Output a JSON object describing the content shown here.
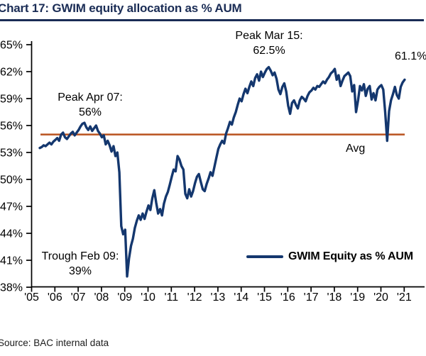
{
  "title": "Chart 17: GWIM equity allocation as % AUM",
  "source": "Source: BAC internal data",
  "colors": {
    "line": "#14376e",
    "avg_line": "#bc5a28",
    "title": "#1a2c55",
    "axis": "#000000"
  },
  "legend": {
    "label": "GWIM Equity as % AUM"
  },
  "annotations": {
    "peak_apr07": {
      "line1": "Peak Apr 07:",
      "line2": "56%"
    },
    "peak_mar15": {
      "line1": "Peak Mar 15:",
      "line2": "62.5%"
    },
    "trough_feb09": {
      "line1": "Trough Feb 09:",
      "line2": "39%"
    },
    "avg_label": "Avg",
    "end_value_label": "61.1%"
  },
  "chart_data": {
    "type": "line",
    "title": "GWIM equity allocation as % AUM",
    "xlabel": "",
    "ylabel": "GWIM Equity as % AUM",
    "ylim": [
      38,
      65
    ],
    "grid": false,
    "legend_position": "lower right",
    "x_start": "2005-05",
    "x_end": "2021-01",
    "x_interval": "monthly",
    "x_tick_labels": [
      "'05",
      "'06",
      "'07",
      "'08",
      "'09",
      "'10",
      "'11",
      "'12",
      "'13",
      "'14",
      "'15",
      "'16",
      "'17",
      "'18",
      "'19",
      "'20",
      "'21"
    ],
    "y_ticks": [
      38,
      41,
      44,
      47,
      50,
      53,
      56,
      59,
      62,
      65
    ],
    "y_tick_labels": [
      "38%",
      "41%",
      "44%",
      "47%",
      "50%",
      "53%",
      "56%",
      "59%",
      "62%",
      "65%"
    ],
    "average_line_value": 55.0,
    "key_points": {
      "peak_apr_2007": 56,
      "trough_feb_2009": 39,
      "peak_mar_2015": 62.5,
      "latest_value": 61.1
    },
    "series": [
      {
        "name": "GWIM Equity as % AUM",
        "values": [
          53.5,
          53.6,
          53.8,
          53.7,
          53.9,
          54.1,
          53.9,
          54.2,
          54.4,
          54.6,
          54.3,
          55.0,
          55.2,
          54.7,
          54.5,
          54.8,
          55.1,
          55.3,
          54.9,
          55.2,
          55.5,
          55.9,
          56.2,
          56.3,
          55.8,
          55.5,
          55.9,
          55.4,
          55.7,
          56.0,
          55.4,
          55.1,
          54.7,
          54.9,
          53.9,
          54.3,
          53.8,
          53.1,
          53.7,
          52.6,
          53.0,
          50.8,
          44.8,
          43.9,
          44.4,
          39.2,
          41.2,
          42.6,
          43.4,
          44.6,
          45.4,
          46.0,
          45.5,
          46.2,
          45.6,
          46.4,
          47.1,
          46.6,
          47.9,
          48.8,
          47.4,
          46.2,
          46.7,
          46.0,
          47.3,
          48.1,
          48.6,
          49.4,
          50.3,
          51.1,
          50.9,
          52.6,
          52.2,
          51.5,
          51.1,
          48.4,
          47.9,
          48.9,
          48.1,
          48.7,
          49.6,
          50.3,
          50.6,
          49.7,
          48.9,
          48.7,
          49.5,
          50.1,
          50.8,
          50.4,
          51.4,
          52.4,
          53.4,
          53.9,
          54.3,
          54.0,
          55.1,
          55.7,
          56.4,
          56.1,
          56.9,
          57.5,
          58.3,
          59.0,
          58.7,
          59.5,
          60.1,
          59.6,
          60.3,
          60.9,
          60.4,
          61.3,
          61.7,
          61.0,
          62.0,
          61.4,
          61.9,
          62.3,
          62.5,
          62.1,
          61.6,
          61.9,
          61.2,
          60.0,
          59.5,
          60.3,
          60.7,
          59.8,
          58.2,
          57.3,
          58.5,
          58.8,
          58.3,
          57.9,
          58.8,
          59.2,
          59.0,
          58.7,
          59.3,
          59.7,
          59.9,
          60.2,
          60.0,
          60.4,
          60.3,
          60.6,
          60.9,
          60.7,
          61.1,
          61.4,
          61.8,
          62.0,
          62.3,
          61.1,
          61.6,
          60.4,
          61.0,
          61.5,
          61.7,
          61.9,
          61.5,
          59.8,
          60.5,
          57.5,
          58.8,
          60.4,
          59.9,
          60.6,
          59.3,
          60.1,
          60.4,
          58.9,
          59.6,
          58.8,
          60.0,
          60.3,
          60.5,
          60.0,
          57.5,
          54.3,
          57.6,
          58.8,
          59.5,
          60.3,
          59.4,
          59.0,
          60.3,
          60.8,
          61.1
        ]
      }
    ]
  }
}
